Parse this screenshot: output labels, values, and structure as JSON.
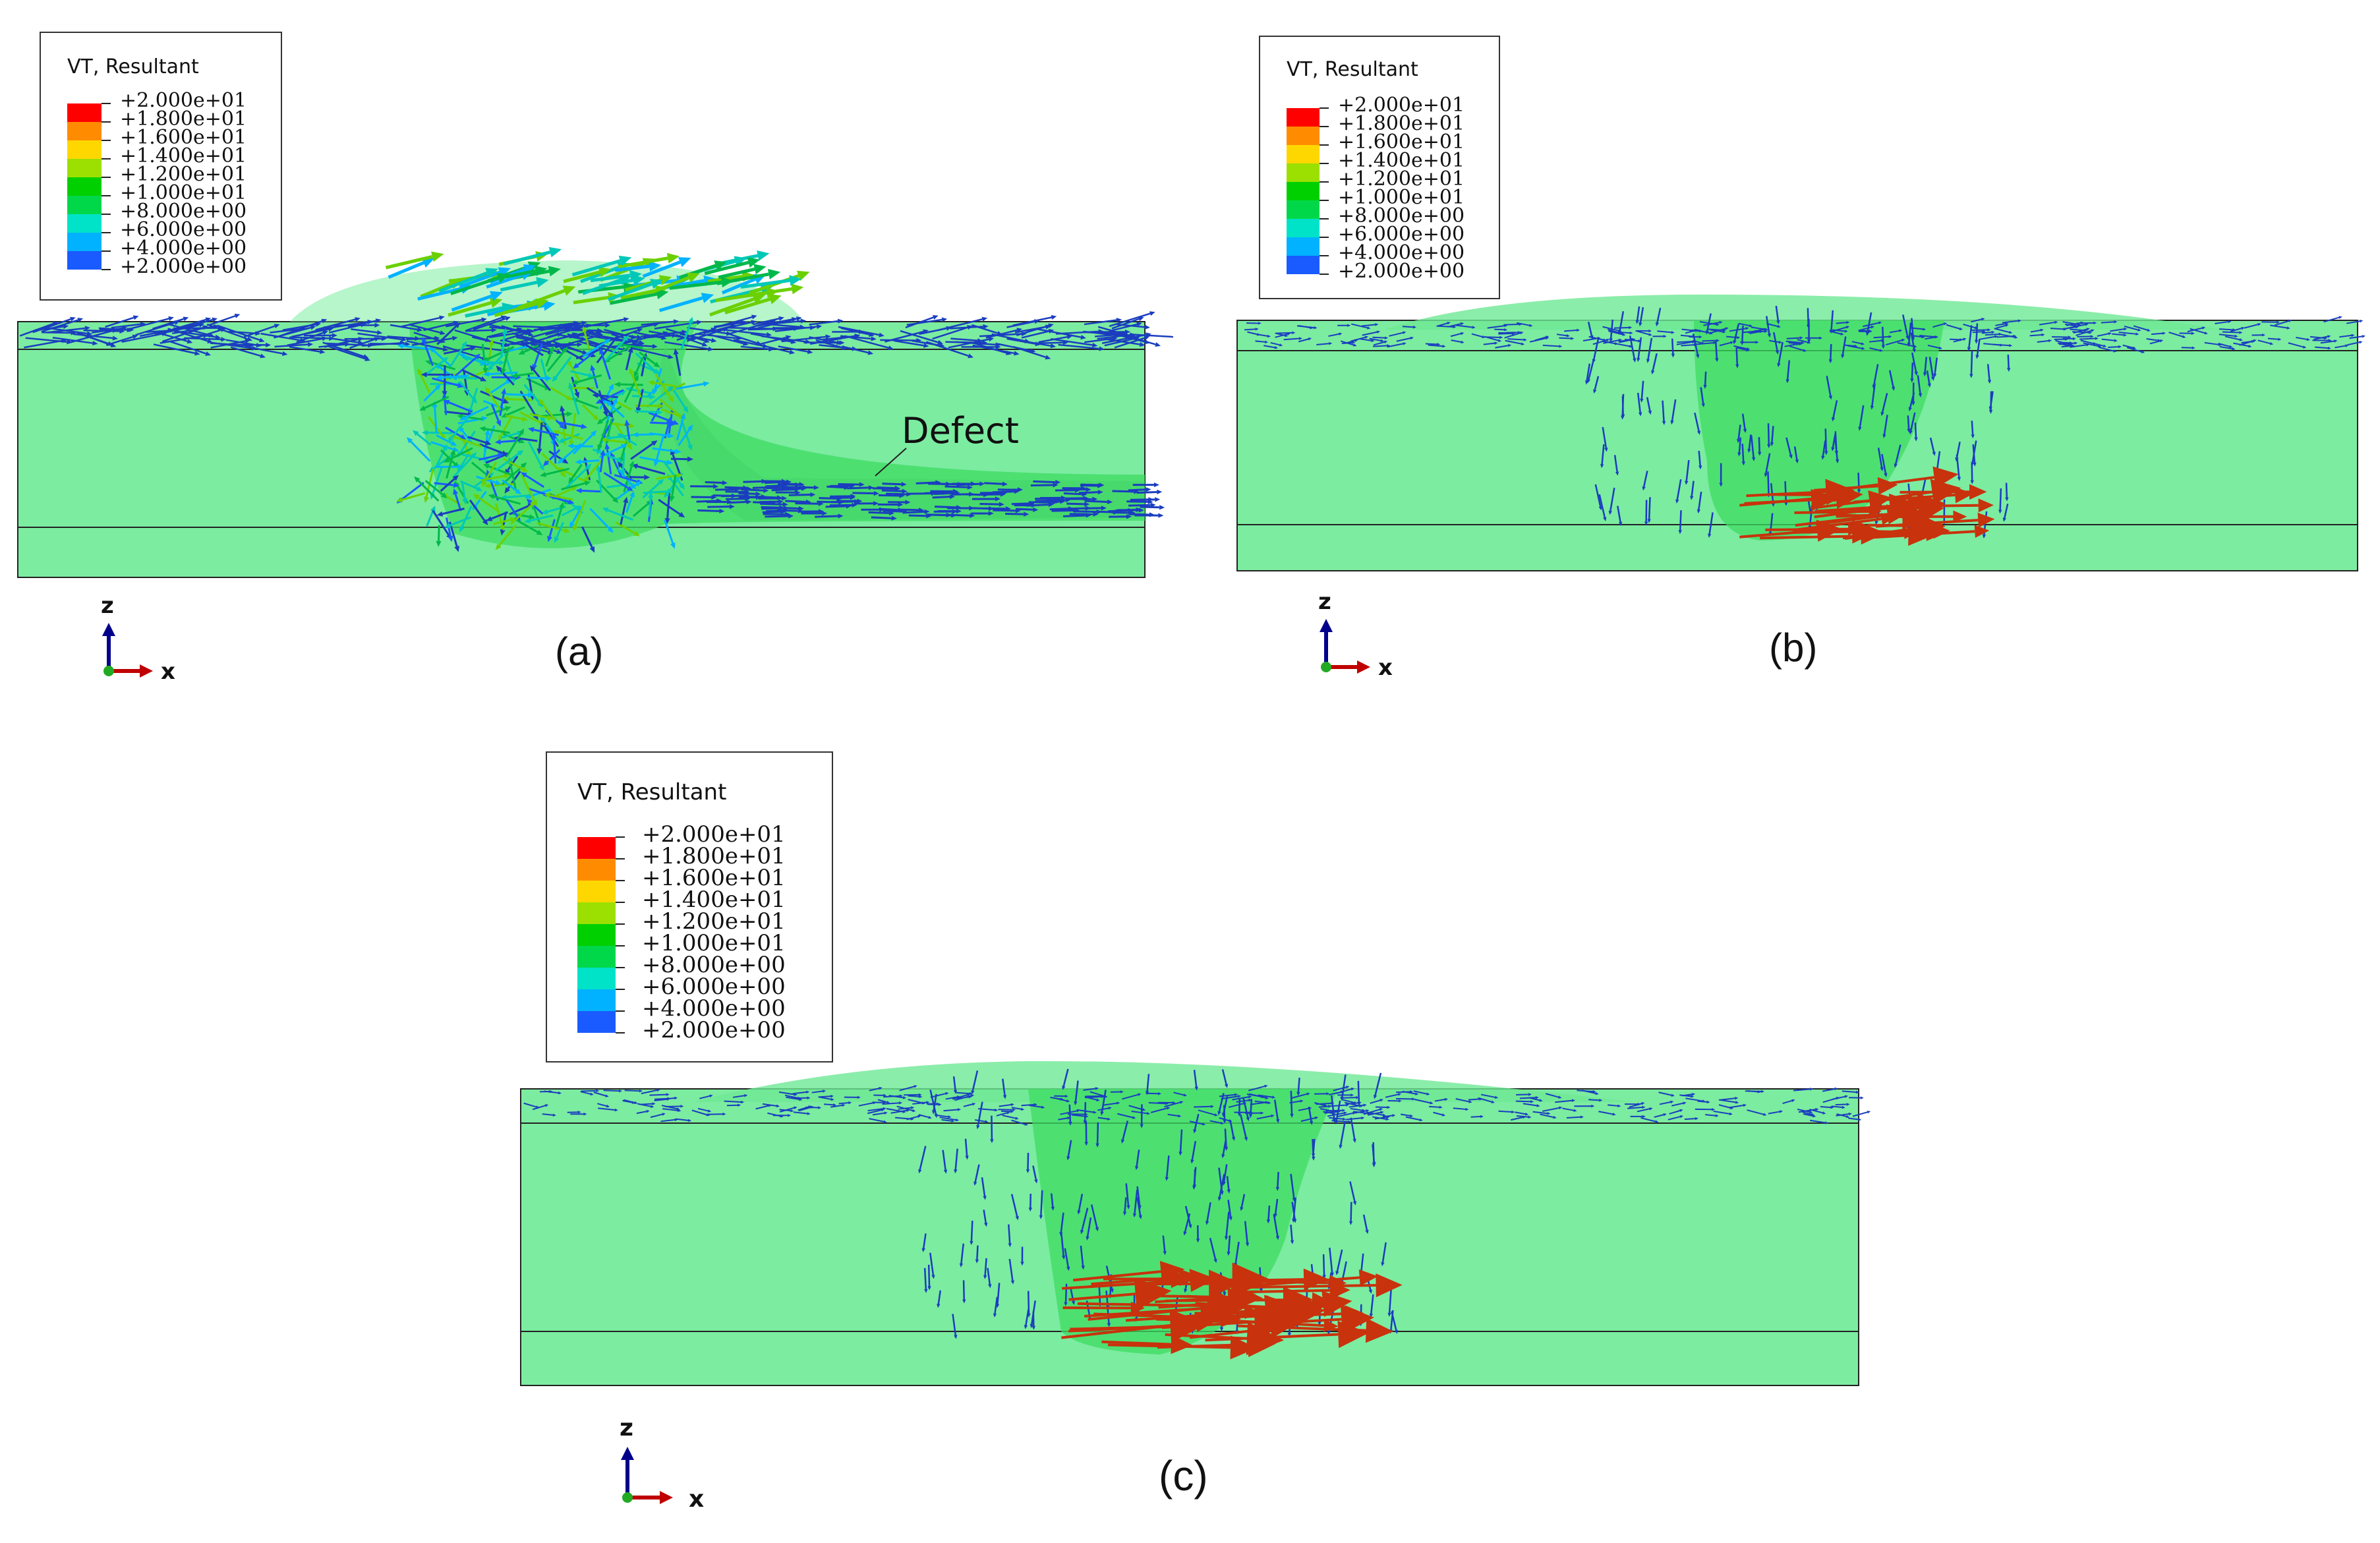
{
  "legend": {
    "title": "VT, Resultant",
    "entries": [
      {
        "label": "+2.000e+01",
        "color": "#ff0000"
      },
      {
        "label": "+1.800e+01",
        "color": "#ff8c00"
      },
      {
        "label": "+1.600e+01",
        "color": "#ffd700"
      },
      {
        "label": "+1.400e+01",
        "color": "#9be000"
      },
      {
        "label": "+1.200e+01",
        "color": "#00d000"
      },
      {
        "label": "+1.000e+01",
        "color": "#00d84a"
      },
      {
        "label": "+8.000e+00",
        "color": "#00e3c8"
      },
      {
        "label": "+6.000e+00",
        "color": "#00b2ff"
      },
      {
        "label": "+4.000e+00",
        "color": "#1a5bff"
      },
      {
        "label": "+2.000e+00",
        "color": "#0000e6"
      },
      {
        "label": "",
        "color": ""
      }
    ]
  },
  "axes": {
    "z": "z",
    "x": "x"
  },
  "panels": {
    "a": {
      "label": "(a)",
      "annotation": "Defect"
    },
    "b": {
      "label": "(b)"
    },
    "c": {
      "label": "(c)"
    }
  },
  "colors": {
    "workpiece": "#7ceca1",
    "stir_zone": "#3ddc62",
    "low_velocity_arrow": "#1a3dbf",
    "high_velocity_arrow": "#c8320c",
    "x_axis": "#c00000",
    "z_axis": "#00008b"
  }
}
